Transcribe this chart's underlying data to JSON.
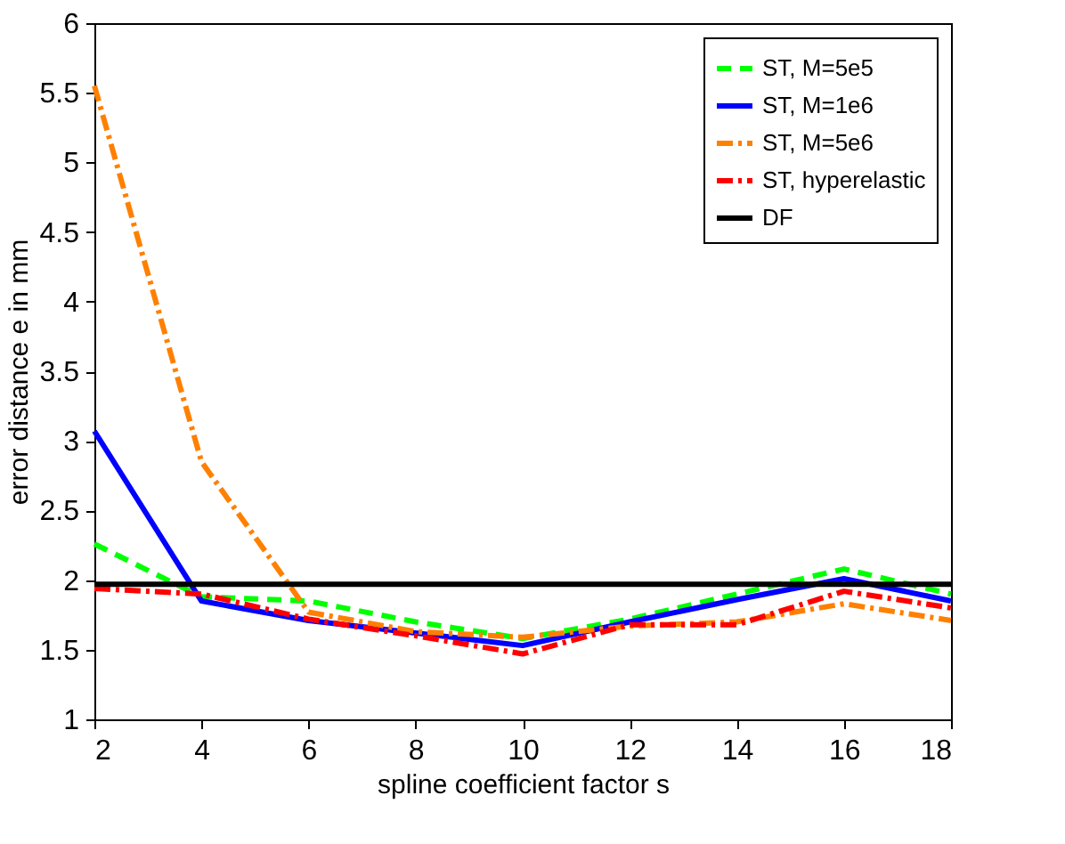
{
  "chart_data": {
    "type": "line",
    "xlabel": "spline coefficient factor s",
    "ylabel": "error distance e in mm",
    "x": [
      2,
      4,
      6,
      8,
      10,
      12,
      14,
      16,
      18
    ],
    "xlim": [
      2,
      18
    ],
    "xticks": [
      2,
      4,
      6,
      8,
      10,
      12,
      14,
      16,
      18
    ],
    "ylim": [
      1,
      6
    ],
    "yticks": [
      1,
      1.5,
      2,
      2.5,
      3,
      3.5,
      4,
      4.5,
      5,
      5.5,
      6
    ],
    "grid": false,
    "legend": "top right",
    "marker": "none",
    "series": [
      {
        "name": "ST, M=5e5",
        "color": "#00ff00",
        "line_style": "dashed",
        "values": [
          2.26,
          1.88,
          1.85,
          1.7,
          1.58,
          1.72,
          1.9,
          2.08,
          1.9
        ]
      },
      {
        "name": "ST, M=1e6",
        "color": "#0000ff",
        "line_style": "solid",
        "values": [
          3.07,
          1.85,
          1.71,
          1.62,
          1.53,
          1.7,
          1.86,
          2.01,
          1.85
        ]
      },
      {
        "name": "ST, M=5e6",
        "color": "#ff8000",
        "line_style": "dashdot",
        "values": [
          5.55,
          2.85,
          1.77,
          1.63,
          1.59,
          1.67,
          1.7,
          1.83,
          1.71
        ]
      },
      {
        "name": "ST, hyperelastic",
        "color": "#ff0000",
        "line_style": "dashdot",
        "values": [
          1.94,
          1.9,
          1.72,
          1.6,
          1.47,
          1.68,
          1.68,
          1.92,
          1.8
        ]
      },
      {
        "name": "DF",
        "color": "#000000",
        "line_style": "solid",
        "values": [
          1.97,
          1.97,
          1.97,
          1.97,
          1.97,
          1.97,
          1.97,
          1.97,
          1.97
        ]
      }
    ]
  }
}
